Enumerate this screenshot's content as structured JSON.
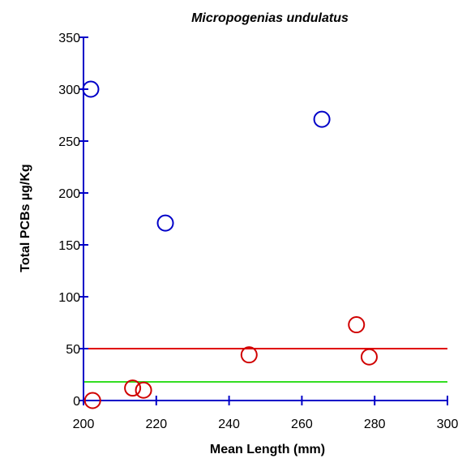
{
  "chart_data": {
    "type": "scatter",
    "title": "Micropogenias undulatus",
    "xlabel": "Mean Length (mm)",
    "ylabel": "Total PCBs µg/Kg",
    "xlim": [
      200,
      300
    ],
    "ylim": [
      0,
      350
    ],
    "x_ticks": [
      200,
      220,
      240,
      260,
      280,
      300
    ],
    "y_ticks": [
      0,
      50,
      100,
      150,
      200,
      250,
      300,
      350
    ],
    "grid": false,
    "legend": "none",
    "series": [
      {
        "color": "#0000c8",
        "marker": "open-circle",
        "points": [
          {
            "x": 202,
            "y": 300
          },
          {
            "x": 222.5,
            "y": 171
          },
          {
            "x": 265.5,
            "y": 271
          }
        ]
      },
      {
        "color": "#d00000",
        "marker": "open-circle",
        "points": [
          {
            "x": 202.5,
            "y": 0
          },
          {
            "x": 213.5,
            "y": 12
          },
          {
            "x": 216.5,
            "y": 10
          },
          {
            "x": 245.5,
            "y": 44
          },
          {
            "x": 275,
            "y": 73
          },
          {
            "x": 278.5,
            "y": 42
          }
        ]
      }
    ],
    "reference_lines": [
      {
        "y": 50,
        "color": "#e00000"
      },
      {
        "y": 18,
        "color": "#33dd22"
      }
    ],
    "axis_color": "#0000c8"
  }
}
